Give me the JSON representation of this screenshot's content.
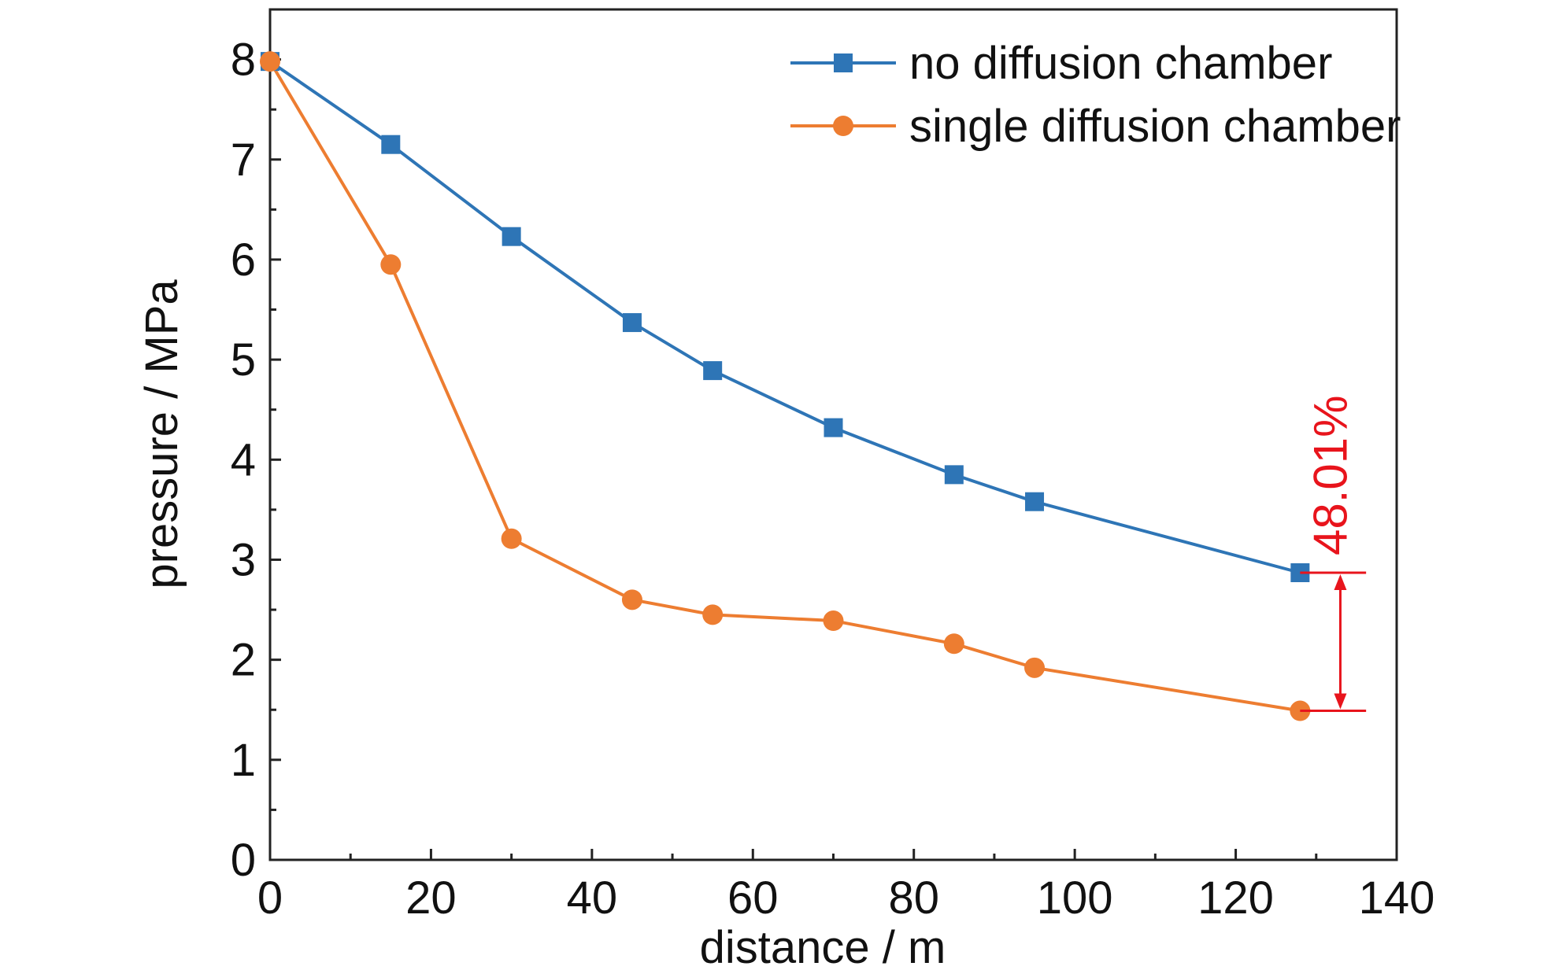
{
  "chart_data": {
    "type": "line",
    "title": "",
    "xlabel": "distance / m",
    "ylabel": "pressure / MPa",
    "xlim": [
      0,
      140
    ],
    "ylim": [
      0,
      8.5
    ],
    "xticks": [
      "0",
      "20",
      "40",
      "60",
      "80",
      "100",
      "120",
      "140"
    ],
    "yticks": [
      "0",
      "1",
      "2",
      "3",
      "4",
      "5",
      "6",
      "7",
      "8"
    ],
    "grid": false,
    "legend_position": "top-right",
    "series": [
      {
        "name": "no diffusion chamber",
        "color": "#2e75b6",
        "marker": "square",
        "x": [
          0,
          15,
          30,
          45,
          55,
          70,
          85,
          95,
          128
        ],
        "y": [
          7.98,
          7.15,
          6.23,
          5.37,
          4.89,
          4.32,
          3.85,
          3.58,
          2.87
        ]
      },
      {
        "name": "single diffusion chamber",
        "color": "#ed7d31",
        "marker": "circle",
        "x": [
          0,
          15,
          30,
          45,
          55,
          70,
          85,
          95,
          128
        ],
        "y": [
          7.98,
          5.95,
          3.21,
          2.6,
          2.45,
          2.39,
          2.16,
          1.92,
          1.49
        ]
      }
    ],
    "annotations": [
      {
        "text": "48.01%",
        "color": "#e8141c",
        "x": 133,
        "y_from": 2.87,
        "y_to": 1.49
      }
    ]
  }
}
